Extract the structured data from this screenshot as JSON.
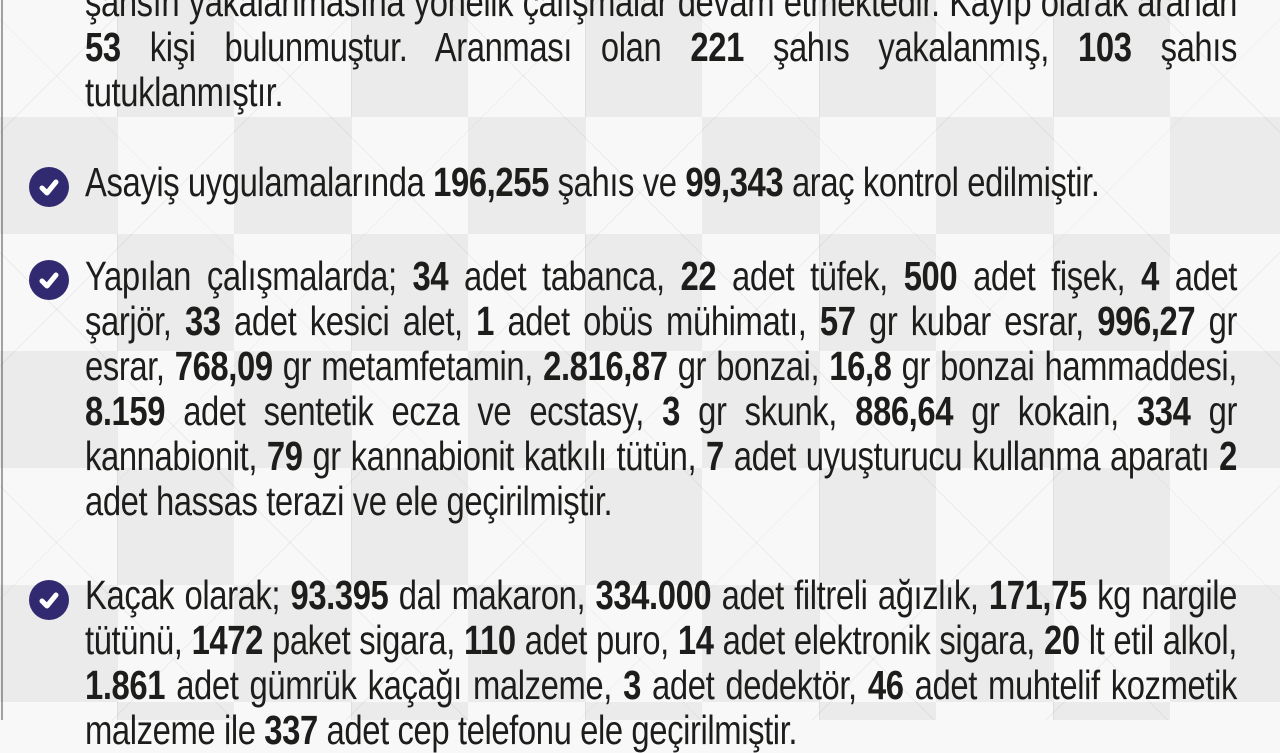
{
  "colors": {
    "bg-base": "#f8f8f8",
    "diamond": "#ebebeb",
    "seam": "#0000000d",
    "text": "#1d1d1b",
    "bullet": "#322a70",
    "check": "#ffffff",
    "edge": "#4a4a4a80"
  },
  "paragraphs": [
    {
      "name": "fugitives-missing-stats",
      "bullet_visible": false,
      "runs": [
        {
          "t": "şahsın yakalanmasına yönelik çalışmalar devam etmektedir. Kayıp olarak aranan ",
          "b": false
        },
        {
          "t": "53",
          "b": true
        },
        {
          "t": " kişi bulunmuştur. Aranması olan ",
          "b": false
        },
        {
          "t": "221",
          "b": true
        },
        {
          "t": " şahıs yakalanmış, ",
          "b": false
        },
        {
          "t": "103",
          "b": true
        },
        {
          "t": " şahıs tutuklanmıştır.",
          "b": false
        }
      ]
    },
    {
      "name": "public-order-controls",
      "bullet_visible": true,
      "runs": [
        {
          "t": "Asayiş uygulamalarında ",
          "b": false
        },
        {
          "t": "196,255",
          "b": true
        },
        {
          "t": " şahıs ve ",
          "b": false
        },
        {
          "t": "99,343",
          "b": true
        },
        {
          "t": " araç kontrol edilmiştir.",
          "b": false
        }
      ]
    },
    {
      "name": "weapons-drugs-seizures",
      "bullet_visible": true,
      "runs": [
        {
          "t": "Yapılan çalışmalarda; ",
          "b": false
        },
        {
          "t": "34",
          "b": true
        },
        {
          "t": " adet tabanca, ",
          "b": false
        },
        {
          "t": "22",
          "b": true
        },
        {
          "t": " adet tüfek, ",
          "b": false
        },
        {
          "t": "500",
          "b": true
        },
        {
          "t": " adet fişek, ",
          "b": false
        },
        {
          "t": "4",
          "b": true
        },
        {
          "t": " adet şarjör, ",
          "b": false
        },
        {
          "t": "33",
          "b": true
        },
        {
          "t": " adet kesici alet, ",
          "b": false
        },
        {
          "t": "1",
          "b": true
        },
        {
          "t": " adet obüs mühimatı, ",
          "b": false
        },
        {
          "t": "57",
          "b": true
        },
        {
          "t": " gr kubar esrar, ",
          "b": false
        },
        {
          "t": "996,27",
          "b": true
        },
        {
          "t": " gr esrar, ",
          "b": false
        },
        {
          "t": "768,09",
          "b": true
        },
        {
          "t": " gr metamfetamin, ",
          "b": false
        },
        {
          "t": "2.816,87",
          "b": true
        },
        {
          "t": " gr bonzai, ",
          "b": false
        },
        {
          "t": "16,8",
          "b": true
        },
        {
          "t": " gr bonzai hammaddesi, ",
          "b": false
        },
        {
          "t": "8.159",
          "b": true
        },
        {
          "t": " adet sentetik ecza ve ecstasy, ",
          "b": false
        },
        {
          "t": "3",
          "b": true
        },
        {
          "t": " gr skunk, ",
          "b": false
        },
        {
          "t": "886,64",
          "b": true
        },
        {
          "t": " gr kokain, ",
          "b": false
        },
        {
          "t": "334",
          "b": true
        },
        {
          "t": " gr kannabionit, ",
          "b": false
        },
        {
          "t": "79",
          "b": true
        },
        {
          "t": " gr kannabionit katkılı tütün, ",
          "b": false
        },
        {
          "t": "7",
          "b": true
        },
        {
          "t": " adet uyuşturucu kullanma aparatı ",
          "b": false
        },
        {
          "t": "2",
          "b": true
        },
        {
          "t": " adet hassas terazi ve ele geçirilmiştir.",
          "b": false
        }
      ]
    },
    {
      "name": "smuggling-seizures",
      "bullet_visible": true,
      "runs": [
        {
          "t": "Kaçak olarak; ",
          "b": false
        },
        {
          "t": "93.395",
          "b": true
        },
        {
          "t": " dal makaron, ",
          "b": false
        },
        {
          "t": "334.000",
          "b": true
        },
        {
          "t": " adet filtreli ağızlık, ",
          "b": false
        },
        {
          "t": "171,75",
          "b": true
        },
        {
          "t": " kg nargile tütünü, ",
          "b": false
        },
        {
          "t": "1472",
          "b": true
        },
        {
          "t": " paket sigara, ",
          "b": false
        },
        {
          "t": "110",
          "b": true
        },
        {
          "t": " adet puro, ",
          "b": false
        },
        {
          "t": "14",
          "b": true
        },
        {
          "t": " adet elektronik sigara, ",
          "b": false
        },
        {
          "t": "20",
          "b": true
        },
        {
          "t": " lt etil alkol, ",
          "b": false
        },
        {
          "t": "1.861",
          "b": true
        },
        {
          "t": " adet gümrük kaçağı malzeme, ",
          "b": false
        },
        {
          "t": "3",
          "b": true
        },
        {
          "t": " adet dedektör, ",
          "b": false
        },
        {
          "t": "46",
          "b": true
        },
        {
          "t": " adet muhtelif kozmetik malzeme ile ",
          "b": false
        },
        {
          "t": "337",
          "b": true
        },
        {
          "t": " adet cep telefonu ele geçirilmiştir.",
          "b": false
        }
      ]
    }
  ]
}
